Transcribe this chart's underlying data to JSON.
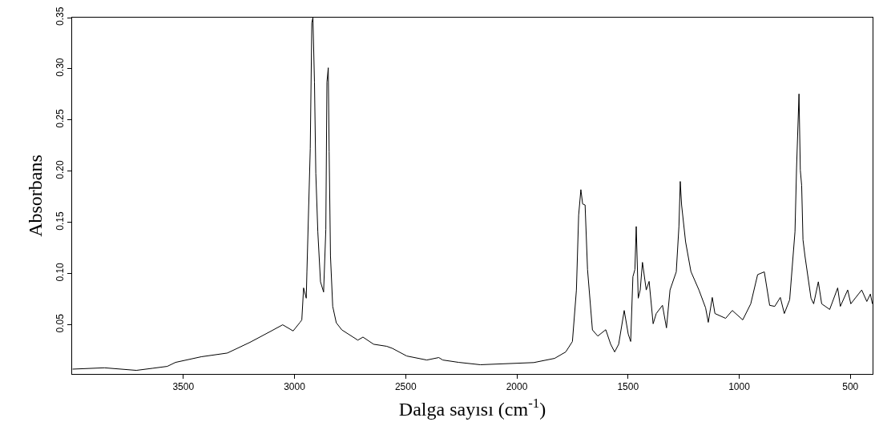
{
  "chart_data": {
    "type": "line",
    "xlabel": "Dalga sayısı (cm$^{-1}$)",
    "ylabel": "Absorbans",
    "xlim": [
      4000,
      400
    ],
    "ylim": [
      0.002,
      0.35
    ],
    "xticks": [
      3500,
      3000,
      2500,
      2000,
      1500,
      1000,
      500
    ],
    "yticks": [
      0.05,
      {
        "value": 0.1,
        "label": "0.10"
      },
      0.15,
      {
        "value": 0.2,
        "label": "0.20"
      },
      0.25,
      {
        "value": 0.3,
        "label": "0.30"
      },
      0.35
    ],
    "marker": "none",
    "line_style": "solid",
    "x": [
      3998,
      3855,
      3711,
      3639,
      3572,
      3535,
      3419,
      3302,
      3200,
      3110,
      3053,
      3006,
      2975,
      2967,
      2959,
      2947,
      2944,
      2929,
      2922,
      2917,
      2910,
      2904,
      2895,
      2883,
      2869,
      2859,
      2854,
      2848,
      2844,
      2838,
      2828,
      2812,
      2787,
      2715,
      2692,
      2644,
      2585,
      2560,
      2495,
      2405,
      2351,
      2333,
      2261,
      2164,
      1924,
      1830,
      1780,
      1750,
      1732,
      1722,
      1712,
      1704,
      1693,
      1682,
      1660,
      1636,
      1600,
      1578,
      1560,
      1542,
      1517,
      1499,
      1488,
      1478,
      1469,
      1463,
      1454,
      1445,
      1435,
      1418,
      1405,
      1387,
      1373,
      1345,
      1327,
      1311,
      1283,
      1271,
      1265,
      1259,
      1241,
      1217,
      1181,
      1151,
      1139,
      1121,
      1109,
      1061,
      1031,
      984,
      948,
      917,
      887,
      863,
      840,
      815,
      797,
      773,
      749,
      742,
      731,
      725,
      719,
      713,
      704,
      677,
      665,
      644,
      629,
      593,
      557,
      545,
      512,
      498,
      449,
      426,
      410,
      401
    ],
    "series": [
      {
        "color": "#000000",
        "values": [
          0.0067,
          0.008,
          0.0055,
          0.0075,
          0.0094,
          0.0133,
          0.0188,
          0.0224,
          0.0329,
          0.0433,
          0.05,
          0.044,
          0.0524,
          0.0548,
          0.086,
          0.076,
          0.102,
          0.222,
          0.345,
          0.35,
          0.287,
          0.198,
          0.141,
          0.092,
          0.082,
          0.143,
          0.287,
          0.301,
          0.219,
          0.117,
          0.068,
          0.052,
          0.045,
          0.035,
          0.038,
          0.031,
          0.029,
          0.027,
          0.0195,
          0.0156,
          0.018,
          0.0156,
          0.0133,
          0.011,
          0.0131,
          0.0172,
          0.0235,
          0.0337,
          0.084,
          0.157,
          0.182,
          0.168,
          0.167,
          0.104,
          0.045,
          0.039,
          0.0452,
          0.031,
          0.0235,
          0.031,
          0.064,
          0.041,
          0.0337,
          0.097,
          0.104,
          0.146,
          0.076,
          0.084,
          0.111,
          0.084,
          0.0924,
          0.051,
          0.061,
          0.069,
          0.047,
          0.084,
          0.1017,
          0.146,
          0.19,
          0.167,
          0.131,
          0.102,
          0.084,
          0.0665,
          0.0524,
          0.0767,
          0.061,
          0.0563,
          0.064,
          0.0548,
          0.0705,
          0.099,
          0.1017,
          0.069,
          0.068,
          0.0767,
          0.061,
          0.0744,
          0.141,
          0.203,
          0.2755,
          0.201,
          0.186,
          0.133,
          0.117,
          0.076,
          0.0705,
          0.092,
          0.0705,
          0.065,
          0.086,
          0.068,
          0.084,
          0.0705,
          0.084,
          0.0728,
          0.08,
          0.0705
        ]
      }
    ]
  }
}
